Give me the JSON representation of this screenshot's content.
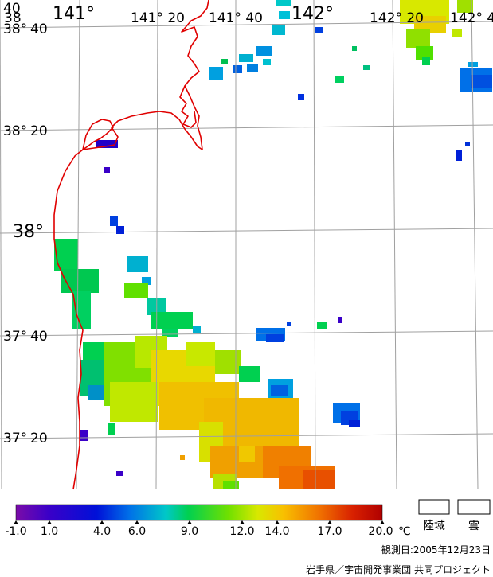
{
  "map": {
    "latitude_labels": [
      {
        "deg": "38°",
        "min": "40",
        "lead": "38"
      },
      {
        "deg": "38°",
        "min": "20"
      },
      {
        "deg": "38°",
        "min": ""
      },
      {
        "deg": "37°",
        "min": "40"
      },
      {
        "deg": "37°",
        "min": "20"
      }
    ],
    "longitude_labels": [
      {
        "text": "40"
      },
      {
        "text": "141°"
      },
      {
        "text": "141° 20"
      },
      {
        "text": "141° 40"
      },
      {
        "text": "142°"
      },
      {
        "text": "142° 20"
      },
      {
        "text": "142° 4"
      }
    ]
  },
  "legend": {
    "unit": "℃",
    "ticks": [
      "-1.0",
      "1.0",
      "4.0",
      "6.0",
      "9.0",
      "12.0",
      "14.0",
      "17.0",
      "20.0"
    ],
    "land_label": "陸域",
    "cloud_label": "雲",
    "gradient_colors": [
      "#7a0ca8",
      "#3a00c8",
      "#0010d8",
      "#0070e8",
      "#00c8c8",
      "#00d050",
      "#70e000",
      "#d8e800",
      "#f8c000",
      "#f07000",
      "#d82000",
      "#b00000"
    ]
  },
  "footer": {
    "observation": "観測日:2005年12月23日",
    "credit": "岩手県／宇宙開発事業団 共同プロジェクト"
  },
  "colors": {
    "coast": "#e00000",
    "grid": "#a0a0a0"
  }
}
